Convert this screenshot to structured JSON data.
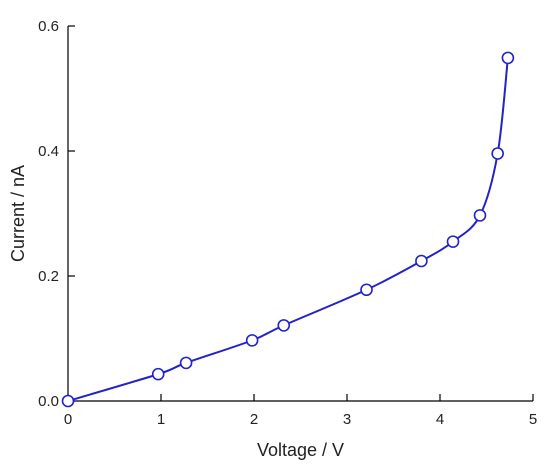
{
  "chart_data": {
    "type": "line",
    "xlabel": "Voltage / V",
    "ylabel": "Current / nA",
    "xlim": [
      0,
      5
    ],
    "ylim": [
      0,
      0.6
    ],
    "x_ticks": [
      0,
      1,
      2,
      3,
      4,
      5
    ],
    "y_ticks": [
      0.0,
      0.2,
      0.4,
      0.6
    ],
    "x_tick_labels": [
      "0",
      "1",
      "2",
      "3",
      "4",
      "5"
    ],
    "y_tick_labels": [
      "0.0",
      "0.2",
      "0.4",
      "0.6"
    ],
    "grid": false,
    "color": "#2222cc",
    "series": [
      {
        "x": [
          0.0,
          0.97,
          1.27,
          1.98,
          2.32,
          3.21,
          3.8,
          4.14,
          4.43,
          4.62,
          4.73
        ],
        "y": [
          0.0,
          0.043,
          0.061,
          0.097,
          0.121,
          0.178,
          0.224,
          0.255,
          0.297,
          0.396,
          0.549
        ]
      }
    ]
  }
}
